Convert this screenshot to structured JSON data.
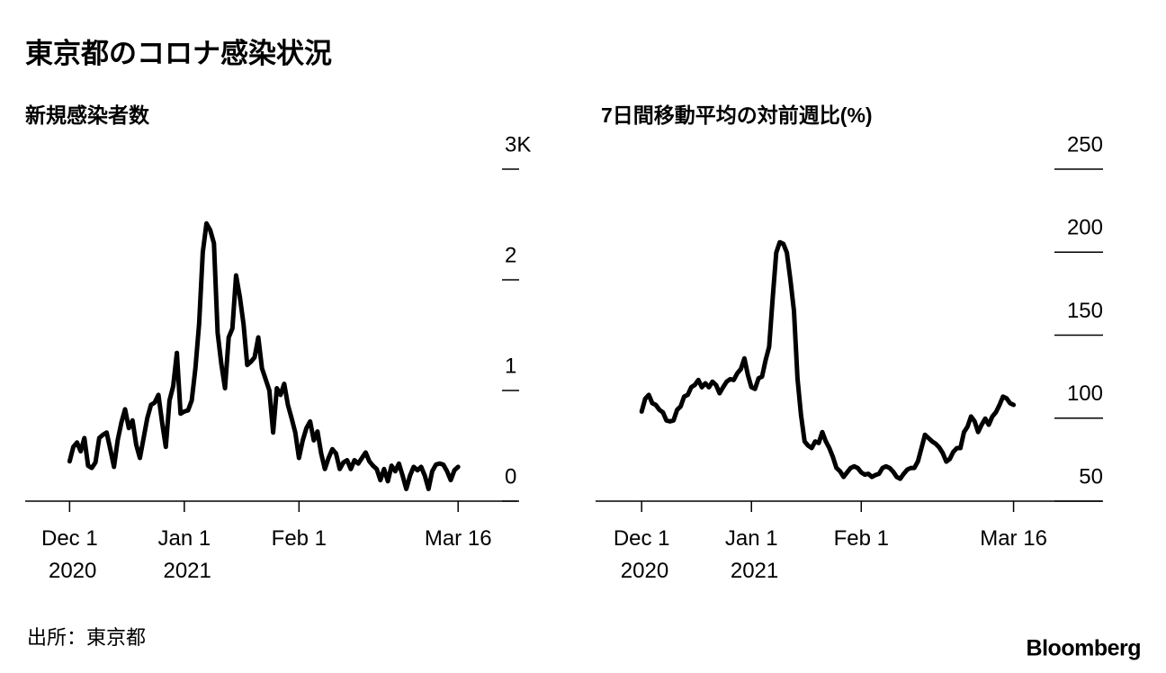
{
  "title": "東京都のコロナ感染状況",
  "source": "出所：東京都",
  "logo": "Bloomberg",
  "chart_data": [
    {
      "type": "line",
      "title": "新規感染者数",
      "color": "#000000",
      "xlim": [
        "2020-11-19",
        "2021-04-01"
      ],
      "xticks": [
        {
          "value": "2020-12-01",
          "label": "Dec 1\n2020"
        },
        {
          "value": "2021-01-01",
          "label": "Jan 1\n2021"
        },
        {
          "value": "2021-02-01",
          "label": "Feb 1"
        },
        {
          "value": "2021-03-16",
          "label": "Mar 16"
        }
      ],
      "ylim": [
        0,
        3
      ],
      "yticks": [
        0,
        1,
        2,
        {
          "value": 3,
          "label": "3K"
        }
      ],
      "x": [
        "2020-12-01",
        "2020-12-02",
        "2020-12-03",
        "2020-12-04",
        "2020-12-05",
        "2020-12-06",
        "2020-12-07",
        "2020-12-08",
        "2020-12-09",
        "2020-12-10",
        "2020-12-11",
        "2020-12-12",
        "2020-12-13",
        "2020-12-14",
        "2020-12-15",
        "2020-12-16",
        "2020-12-17",
        "2020-12-18",
        "2020-12-19",
        "2020-12-20",
        "2020-12-21",
        "2020-12-22",
        "2020-12-23",
        "2020-12-24",
        "2020-12-25",
        "2020-12-26",
        "2020-12-27",
        "2020-12-28",
        "2020-12-29",
        "2020-12-30",
        "2020-12-31",
        "2021-01-01",
        "2021-01-02",
        "2021-01-03",
        "2021-01-04",
        "2021-01-05",
        "2021-01-06",
        "2021-01-07",
        "2021-01-08",
        "2021-01-09",
        "2021-01-10",
        "2021-01-11",
        "2021-01-12",
        "2021-01-13",
        "2021-01-14",
        "2021-01-15",
        "2021-01-16",
        "2021-01-17",
        "2021-01-18",
        "2021-01-19",
        "2021-01-20",
        "2021-01-21",
        "2021-01-22",
        "2021-01-23",
        "2021-01-24",
        "2021-01-25",
        "2021-01-26",
        "2021-01-27",
        "2021-01-28",
        "2021-01-29",
        "2021-01-30",
        "2021-01-31",
        "2021-02-01",
        "2021-02-02",
        "2021-02-03",
        "2021-02-04",
        "2021-02-05",
        "2021-02-06",
        "2021-02-07",
        "2021-02-08",
        "2021-02-09",
        "2021-02-10",
        "2021-02-11",
        "2021-02-12",
        "2021-02-13",
        "2021-02-14",
        "2021-02-15",
        "2021-02-16",
        "2021-02-17",
        "2021-02-18",
        "2021-02-19",
        "2021-02-20",
        "2021-02-21",
        "2021-02-22",
        "2021-02-23",
        "2021-02-24",
        "2021-02-25",
        "2021-02-26",
        "2021-02-27",
        "2021-02-28",
        "2021-03-01",
        "2021-03-02",
        "2021-03-03",
        "2021-03-04",
        "2021-03-05",
        "2021-03-06",
        "2021-03-07",
        "2021-03-08",
        "2021-03-09",
        "2021-03-10",
        "2021-03-11",
        "2021-03-12",
        "2021-03-13",
        "2021-03-14",
        "2021-03-15",
        "2021-03-16"
      ],
      "values": [
        0.36,
        0.49,
        0.53,
        0.45,
        0.57,
        0.32,
        0.3,
        0.35,
        0.57,
        0.6,
        0.62,
        0.47,
        0.31,
        0.55,
        0.71,
        0.83,
        0.66,
        0.73,
        0.51,
        0.39,
        0.57,
        0.75,
        0.87,
        0.89,
        0.96,
        0.71,
        0.49,
        0.91,
        1.04,
        1.34,
        0.79,
        0.81,
        0.82,
        0.91,
        1.2,
        1.6,
        2.25,
        2.51,
        2.45,
        2.33,
        1.52,
        1.24,
        1.02,
        1.48,
        1.56,
        2.04,
        1.85,
        1.6,
        1.23,
        1.26,
        1.3,
        1.48,
        1.2,
        1.1,
        1.0,
        0.62,
        1.02,
        0.96,
        1.06,
        0.87,
        0.75,
        0.62,
        0.39,
        0.55,
        0.66,
        0.72,
        0.55,
        0.63,
        0.43,
        0.29,
        0.39,
        0.47,
        0.43,
        0.29,
        0.35,
        0.37,
        0.29,
        0.37,
        0.34,
        0.39,
        0.44,
        0.36,
        0.32,
        0.29,
        0.19,
        0.29,
        0.18,
        0.32,
        0.27,
        0.34,
        0.23,
        0.11,
        0.23,
        0.31,
        0.28,
        0.31,
        0.23,
        0.11,
        0.27,
        0.33,
        0.34,
        0.33,
        0.27,
        0.19,
        0.28,
        0.31
      ]
    },
    {
      "type": "line",
      "title": "7日間移動平均の対前週比(%)",
      "color": "#000000",
      "xlim": [
        "2020-11-18",
        "2021-04-10"
      ],
      "xticks": [
        {
          "value": "2020-12-01",
          "label": "Dec 1\n2020"
        },
        {
          "value": "2021-01-01",
          "label": "Jan 1\n2021"
        },
        {
          "value": "2021-02-01",
          "label": "Feb 1"
        },
        {
          "value": "2021-03-16",
          "label": "Mar 16"
        }
      ],
      "ylim": [
        50,
        250
      ],
      "yticks": [
        50,
        100,
        150,
        200,
        250
      ],
      "x": [
        "2020-12-01",
        "2020-12-02",
        "2020-12-03",
        "2020-12-04",
        "2020-12-05",
        "2020-12-06",
        "2020-12-07",
        "2020-12-08",
        "2020-12-09",
        "2020-12-10",
        "2020-12-11",
        "2020-12-12",
        "2020-12-13",
        "2020-12-14",
        "2020-12-15",
        "2020-12-16",
        "2020-12-17",
        "2020-12-18",
        "2020-12-19",
        "2020-12-20",
        "2020-12-21",
        "2020-12-22",
        "2020-12-23",
        "2020-12-24",
        "2020-12-25",
        "2020-12-26",
        "2020-12-27",
        "2020-12-28",
        "2020-12-29",
        "2020-12-30",
        "2020-12-31",
        "2021-01-01",
        "2021-01-02",
        "2021-01-03",
        "2021-01-04",
        "2021-01-05",
        "2021-01-06",
        "2021-01-07",
        "2021-01-08",
        "2021-01-09",
        "2021-01-10",
        "2021-01-11",
        "2021-01-12",
        "2021-01-13",
        "2021-01-14",
        "2021-01-15",
        "2021-01-16",
        "2021-01-17",
        "2021-01-18",
        "2021-01-19",
        "2021-01-20",
        "2021-01-21",
        "2021-01-22",
        "2021-01-23",
        "2021-01-24",
        "2021-01-25",
        "2021-01-26",
        "2021-01-27",
        "2021-01-28",
        "2021-01-29",
        "2021-01-30",
        "2021-01-31",
        "2021-02-01",
        "2021-02-02",
        "2021-02-03",
        "2021-02-04",
        "2021-02-05",
        "2021-02-06",
        "2021-02-07",
        "2021-02-08",
        "2021-02-09",
        "2021-02-10",
        "2021-02-11",
        "2021-02-12",
        "2021-02-13",
        "2021-02-14",
        "2021-02-15",
        "2021-02-16",
        "2021-02-17",
        "2021-02-18",
        "2021-02-19",
        "2021-02-20",
        "2021-02-21",
        "2021-02-22",
        "2021-02-23",
        "2021-02-24",
        "2021-02-25",
        "2021-02-26",
        "2021-02-27",
        "2021-02-28",
        "2021-03-01",
        "2021-03-02",
        "2021-03-03",
        "2021-03-04",
        "2021-03-05",
        "2021-03-06",
        "2021-03-07",
        "2021-03-08",
        "2021-03-09",
        "2021-03-10",
        "2021-03-11",
        "2021-03-12",
        "2021-03-13",
        "2021-03-14",
        "2021-03-15",
        "2021-03-16"
      ],
      "values": [
        104,
        111.6,
        114,
        109,
        108,
        105,
        103.5,
        98.6,
        98,
        98.6,
        105,
        107,
        113,
        114,
        118.6,
        120,
        123,
        118.6,
        121,
        118.6,
        122,
        120,
        115,
        118.6,
        122,
        123.5,
        123,
        127,
        129.5,
        136,
        126,
        118.6,
        117.6,
        124,
        125,
        135,
        143,
        172.7,
        199.7,
        206,
        205,
        199.7,
        183.5,
        164.6,
        124,
        102,
        86,
        83.5,
        82,
        86,
        85,
        91.6,
        86,
        82,
        76.5,
        70,
        68,
        64.6,
        67.3,
        70,
        71,
        70,
        67.3,
        66,
        66.5,
        64.6,
        65.7,
        66.5,
        70,
        71,
        70,
        67.8,
        64.6,
        63.5,
        66.5,
        69,
        70,
        70,
        74,
        82,
        90,
        88,
        86,
        84.6,
        82.4,
        79,
        73.8,
        75.4,
        79.7,
        82,
        82,
        91.6,
        94.9,
        101,
        98,
        91.6,
        96,
        99.7,
        96,
        101,
        103.5,
        107.8,
        113,
        112,
        109,
        108
      ]
    }
  ]
}
